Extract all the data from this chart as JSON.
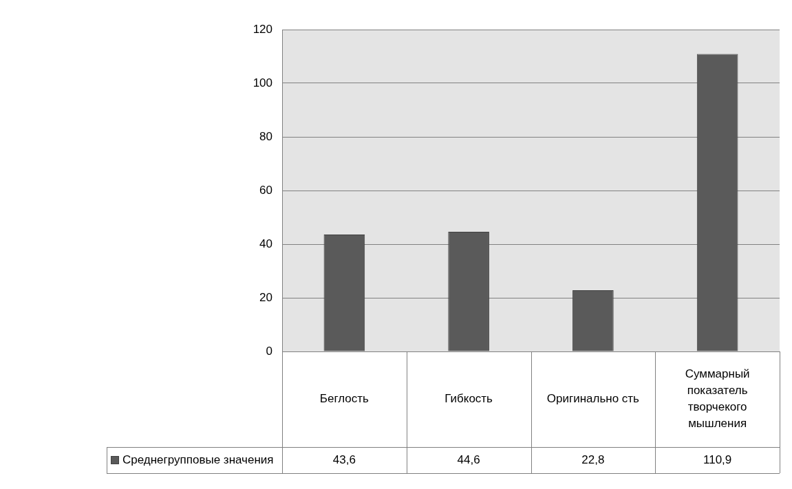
{
  "chart_data": {
    "type": "bar",
    "categories": [
      "Беглость",
      "Гибкость",
      "Оригинально сть",
      "Суммарный показатель творчекого мышления"
    ],
    "series": [
      {
        "name": "Среднегрупповые значения",
        "color": "#5a5a5a",
        "values": [
          43.6,
          44.6,
          22.8,
          110.9
        ],
        "value_labels": [
          "43,6",
          "44,6",
          "22,8",
          "110,9"
        ]
      }
    ],
    "ylim": [
      0,
      120
    ],
    "yticks": [
      0,
      20,
      40,
      60,
      80,
      100,
      120
    ],
    "grid": "y",
    "legend": "bottom left"
  }
}
